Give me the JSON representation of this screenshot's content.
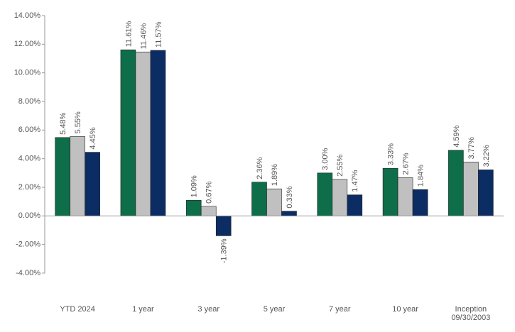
{
  "chart_data": {
    "type": "bar",
    "categories": [
      "YTD 2024",
      "1 year",
      "3 year",
      "5 year",
      "7 year",
      "10 year",
      "Inception 09/30/2003"
    ],
    "series": [
      {
        "color": "#0e6e4a",
        "values": [
          5.48,
          11.61,
          1.09,
          2.36,
          3.0,
          3.33,
          4.59
        ],
        "value_labels": [
          "5.48%",
          "11.61%",
          "1.09%",
          "2.36%",
          "3.00%",
          "3.33%",
          "4.59%"
        ]
      },
      {
        "color": "#c0c0c0",
        "values": [
          5.55,
          11.46,
          0.67,
          1.89,
          2.55,
          2.67,
          3.77
        ],
        "value_labels": [
          "5.55%",
          "11.46%",
          "0.67%",
          "1.89%",
          "2.55%",
          "2.67%",
          "3.77%"
        ]
      },
      {
        "color": "#0b2d63",
        "values": [
          4.45,
          11.57,
          -1.39,
          0.33,
          1.47,
          1.84,
          3.22
        ],
        "value_labels": [
          "4.45%",
          "11.57%",
          "-1.39%",
          "0.33%",
          "1.47%",
          "1.84%",
          "3.22%"
        ]
      }
    ],
    "ylim": [
      -4,
      14
    ],
    "yticks": [
      {
        "value": -4,
        "label": "-4.00%"
      },
      {
        "value": -2,
        "label": "-2.00%"
      },
      {
        "value": 0,
        "label": "0.00%"
      },
      {
        "value": 2,
        "label": "2.00%"
      },
      {
        "value": 4,
        "label": "4.00%"
      },
      {
        "value": 6,
        "label": "6.00%"
      },
      {
        "value": 8,
        "label": "8.00%"
      },
      {
        "value": 10,
        "label": "10.00%"
      },
      {
        "value": 12,
        "label": "12.00%"
      },
      {
        "value": 14,
        "label": "14.00%"
      }
    ],
    "grid": false
  }
}
